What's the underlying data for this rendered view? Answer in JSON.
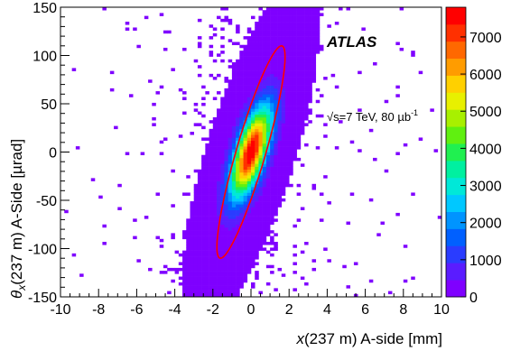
{
  "chart_data": {
    "type": "heatmap",
    "title": "",
    "xlabel": "x(237 m) A-side [mm]",
    "ylabel": "θx(237 m) A-Side [µrad]",
    "xlim": [
      -10,
      10
    ],
    "ylim": [
      -150,
      150
    ],
    "x_ticks": [
      "-10",
      "-8",
      "-6",
      "-4",
      "-2",
      "0",
      "2",
      "4",
      "6",
      "8",
      "10"
    ],
    "y_ticks": [
      "-150",
      "-100",
      "-50",
      "0",
      "50",
      "100",
      "150"
    ],
    "z_ticks": [
      "0",
      "1000",
      "2000",
      "3000",
      "4000",
      "5000",
      "6000",
      "7000"
    ],
    "zlim": [
      0,
      7800
    ],
    "colorscale": [
      "#7f00ff",
      "#5a1cff",
      "#2a3cff",
      "#0060ff",
      "#0094ff",
      "#00c8ff",
      "#00e8d8",
      "#00f0a0",
      "#20f050",
      "#60f010",
      "#a8f000",
      "#e8f000",
      "#ffd000",
      "#ff9c00",
      "#ff6800",
      "#ff3000",
      "#ff0000"
    ],
    "peak": {
      "x": 0.0,
      "y": 0.0,
      "value": 7800
    },
    "core_sigma": {
      "major_ahead": 35,
      "minor_mm": 0.55
    },
    "ellipse_cut": {
      "center": [
        0,
        0
      ],
      "x_at_top": 1.6,
      "y_top": 110,
      "x_at_bottom": -1.6,
      "y_bottom": -110,
      "half_width_mm": 0.8,
      "color": "#ff0000"
    },
    "annotations": {
      "experiment": "ATLAS",
      "energy": "√s=7 TeV, 80 µb",
      "energy_superscript": "-1"
    }
  }
}
